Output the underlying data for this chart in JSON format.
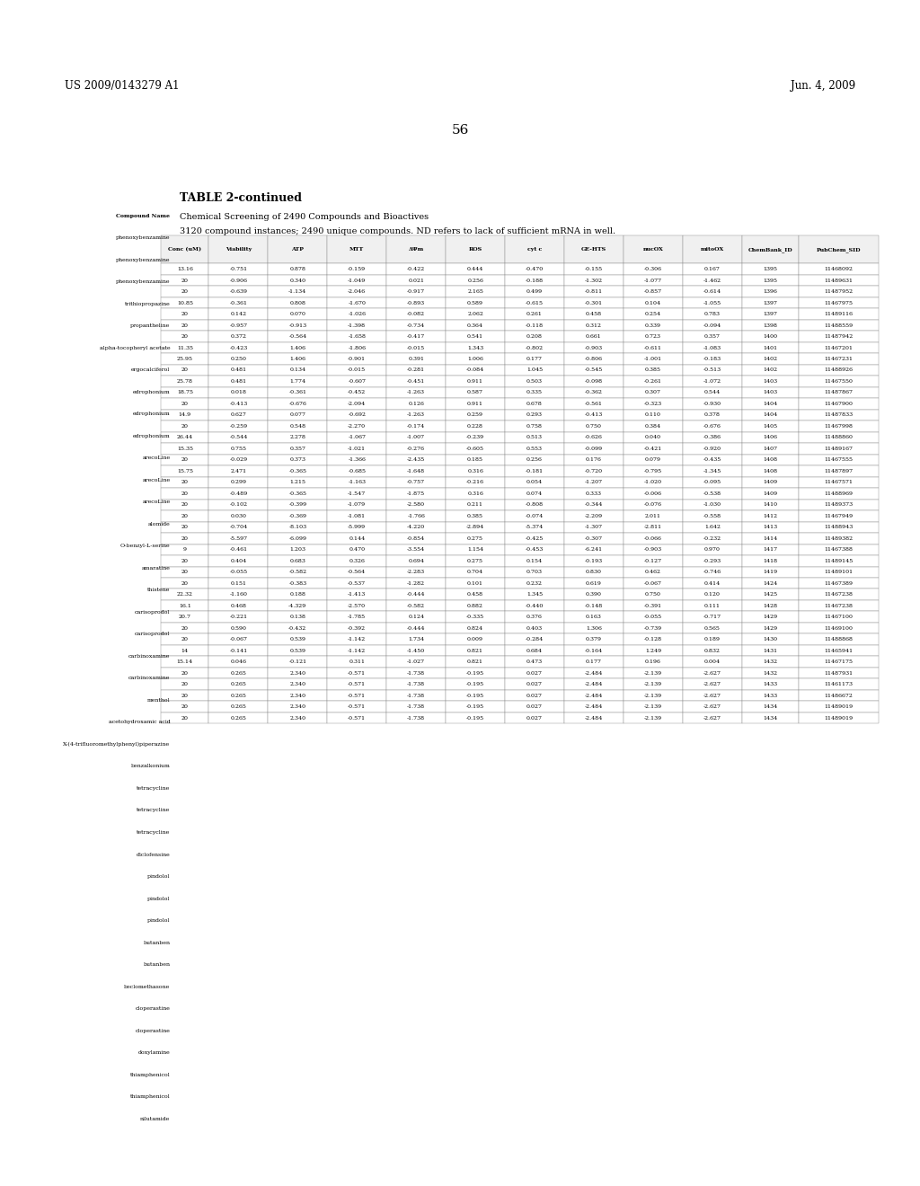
{
  "header_left": "US 2009/0143279 A1",
  "header_right": "Jun. 4, 2009",
  "page_number": "56",
  "table_title": "TABLE 2-continued",
  "subtitle1": "Chemical Screening of 2490 Compounds and Bioactives",
  "subtitle2": "3120 compound instances; 2490 unique compounds. ND refers to lack of sufficient mRNA in well.",
  "col_header": [
    "Compound Name",
    "Conc (uM)",
    "Viability",
    "ATP",
    "MTT",
    "ΔΨm",
    "ROS",
    "cyt c",
    "GE-HTS",
    "nucOX",
    "mitoOX",
    "ChemBank_ID",
    "PubChem_SID"
  ],
  "rows": [
    [
      "phenoxybenzamine",
      "13.16",
      "-0.751",
      "0.878",
      "-0.159",
      "-0.422",
      "0.444",
      "-0.470",
      "-0.155",
      "-0.306",
      "0.167",
      "1395",
      "11468092"
    ],
    [
      "phenoxybenzamine",
      "20",
      "-0.906",
      "0.340",
      "-1.049",
      "0.021",
      "0.256",
      "-0.188",
      "-1.302",
      "-1.077",
      "-1.462",
      "1395",
      "11489631"
    ],
    [
      "phenoxybenzamine",
      "20",
      "-0.639",
      "-1.134",
      "-2.046",
      "-0.917",
      "2.165",
      "0.499",
      "-0.811",
      "-0.857",
      "-0.614",
      "1396",
      "11487952"
    ],
    [
      "trithiopropazine",
      "10.85",
      "-0.361",
      "0.808",
      "-1.670",
      "-0.893",
      "0.589",
      "-0.615",
      "-0.301",
      "0.104",
      "-1.055",
      "1397",
      "11467975"
    ],
    [
      "propantheline",
      "20",
      "0.142",
      "0.070",
      "-1.026",
      "-0.082",
      "2.062",
      "0.261",
      "0.458",
      "0.254",
      "0.783",
      "1397",
      "11489116"
    ],
    [
      "alpha-tocopheryl acetate",
      "20",
      "-0.957",
      "-0.913",
      "-1.398",
      "-0.734",
      "0.364",
      "-0.118",
      "0.312",
      "0.339",
      "-0.094",
      "1398",
      "11488559"
    ],
    [
      "ergocalciferol",
      "20",
      "0.372",
      "-0.564",
      "-1.658",
      "-0.417",
      "0.541",
      "0.208",
      "0.661",
      "0.723",
      "0.357",
      "1400",
      "11487942"
    ],
    [
      "edrophonium",
      "11.35",
      "-0.423",
      "1.406",
      "-1.806",
      "-0.015",
      "1.343",
      "-0.802",
      "-0.903",
      "-0.611",
      "-1.083",
      "1401",
      "11467201"
    ],
    [
      "edrophonium",
      "25.95",
      "0.250",
      "1.406",
      "-0.901",
      "0.391",
      "1.006",
      "0.177",
      "-0.806",
      "-1.001",
      "-0.183",
      "1402",
      "11467231"
    ],
    [
      "edrophonium",
      "20",
      "0.481",
      "0.134",
      "-0.015",
      "-0.281",
      "-0.084",
      "1.045",
      "-0.545",
      "0.385",
      "-0.513",
      "1402",
      "11488926"
    ],
    [
      "arecoLine",
      "25.78",
      "0.481",
      "1.774",
      "-0.607",
      "-0.451",
      "0.911",
      "0.503",
      "-0.098",
      "-0.261",
      "-1.072",
      "1403",
      "11467550"
    ],
    [
      "arecoLine",
      "18.75",
      "0.018",
      "-0.361",
      "-0.452",
      "-1.263",
      "0.587",
      "0.335",
      "-0.362",
      "0.307",
      "0.544",
      "1403",
      "11487867"
    ],
    [
      "arecoLine",
      "20",
      "-0.413",
      "-0.676",
      "-2.094",
      "0.126",
      "0.911",
      "0.678",
      "-0.561",
      "-0.323",
      "-0.930",
      "1404",
      "11467900"
    ],
    [
      "alomide",
      "14.9",
      "0.627",
      "0.077",
      "-0.692",
      "-1.263",
      "0.259",
      "0.293",
      "-0.413",
      "0.110",
      "0.378",
      "1404",
      "11487833"
    ],
    [
      "O-benzyl-L-serine",
      "20",
      "-0.259",
      "0.548",
      "-2.270",
      "-0.174",
      "0.228",
      "0.758",
      "0.750",
      "0.384",
      "-0.676",
      "1405",
      "11467998"
    ],
    [
      "amaratine",
      "26.44",
      "-0.544",
      "2.278",
      "-1.067",
      "-1.007",
      "-0.239",
      "0.513",
      "-0.626",
      "0.040",
      "-0.386",
      "1406",
      "11488860"
    ],
    [
      "thistene",
      "15.35",
      "0.755",
      "0.357",
      "-1.021",
      "-0.276",
      "-0.605",
      "0.553",
      "-0.099",
      "-0.421",
      "-0.920",
      "1407",
      "11489167"
    ],
    [
      "carisoprodol",
      "20",
      "-0.029",
      "0.373",
      "-1.366",
      "-2.435",
      "0.185",
      "0.256",
      "0.176",
      "0.079",
      "-0.435",
      "1408",
      "11467555"
    ],
    [
      "carisoprodol",
      "15.75",
      "2.471",
      "-0.365",
      "-0.685",
      "-1.648",
      "0.316",
      "-0.181",
      "-0.720",
      "-0.795",
      "-1.345",
      "1408",
      "11487897"
    ],
    [
      "carbinoxamine",
      "20",
      "0.299",
      "1.215",
      "-1.163",
      "-0.757",
      "-0.216",
      "0.054",
      "-1.207",
      "-1.020",
      "-0.095",
      "1409",
      "11467571"
    ],
    [
      "carbinoxamine",
      "20",
      "-0.489",
      "-0.365",
      "-1.547",
      "-1.875",
      "0.316",
      "0.074",
      "0.333",
      "-0.006",
      "-0.538",
      "1409",
      "11488969"
    ],
    [
      "menthol",
      "20",
      "-0.102",
      "-0.399",
      "-1.079",
      "-2.580",
      "0.211",
      "-0.808",
      "-0.344",
      "-0.076",
      "-1.030",
      "1410",
      "11489373"
    ],
    [
      "acetohydroxamic acid",
      "20",
      "0.030",
      "-0.369",
      "-1.081",
      "-1.766",
      "0.385",
      "-0.074",
      "-2.209",
      "2.011",
      "-0.558",
      "1412",
      "11467949"
    ],
    [
      "X-(4-trifluoromethylphenyl)piperazine",
      "20",
      "-0.704",
      "-8.103",
      "-5.999",
      "-4.220",
      "-2.894",
      "-5.374",
      "-1.307",
      "-2.811",
      "1.642",
      "1413",
      "11488943"
    ],
    [
      "benzalkonium",
      "20",
      "-5.597",
      "-6.099",
      "0.144",
      "-0.854",
      "0.275",
      "-0.425",
      "-0.307",
      "-0.066",
      "-0.232",
      "1414",
      "11489382"
    ],
    [
      "tetracycline",
      "9",
      "-0.461",
      "1.203",
      "0.470",
      "-3.554",
      "1.154",
      "-0.453",
      "-6.241",
      "-0.903",
      "0.970",
      "1417",
      "11467388"
    ],
    [
      "tetracycline",
      "20",
      "0.404",
      "0.683",
      "0.326",
      "0.694",
      "0.275",
      "0.154",
      "-0.193",
      "-0.127",
      "-0.293",
      "1418",
      "11489145"
    ],
    [
      "tetracycline",
      "20",
      "-0.055",
      "-0.582",
      "-0.564",
      "-2.283",
      "0.704",
      "0.703",
      "0.830",
      "0.462",
      "-0.746",
      "1419",
      "11489101"
    ],
    [
      "diclofensine",
      "20",
      "0.151",
      "-0.383",
      "-0.537",
      "-1.282",
      "0.101",
      "0.232",
      "0.619",
      "-0.067",
      "0.414",
      "1424",
      "11467389"
    ],
    [
      "pindolol",
      "22.32",
      "-1.160",
      "0.188",
      "-1.413",
      "-0.444",
      "0.458",
      "1.345",
      "0.390",
      "0.750",
      "0.120",
      "1425",
      "11467238"
    ],
    [
      "pindolol",
      "16.1",
      "0.468",
      "-4.329",
      "-2.570",
      "-0.582",
      "0.882",
      "-0.440",
      "-0.148",
      "-0.391",
      "0.111",
      "1428",
      "11467238"
    ],
    [
      "pindolol",
      "20.7",
      "-0.221",
      "0.138",
      "-1.785",
      "0.124",
      "-0.335",
      "0.376",
      "0.163",
      "-0.055",
      "-0.717",
      "1429",
      "11467100"
    ],
    [
      "butanben",
      "20",
      "0.590",
      "-0.432",
      "-0.392",
      "-0.444",
      "0.824",
      "0.403",
      "1.306",
      "-0.739",
      "0.565",
      "1429",
      "11469100"
    ],
    [
      "butanben",
      "20",
      "-0.067",
      "0.539",
      "-1.142",
      "1.734",
      "0.009",
      "-0.284",
      "0.379",
      "-0.128",
      "0.189",
      "1430",
      "11488868"
    ],
    [
      "beclomethasone",
      "14",
      "-0.141",
      "0.539",
      "-1.142",
      "-1.450",
      "0.821",
      "0.684",
      "-0.164",
      "1.249",
      "0.832",
      "1431",
      "11465941"
    ],
    [
      "cloperastine",
      "15.14",
      "0.046",
      "-0.121",
      "0.311",
      "-1.027",
      "0.821",
      "0.473",
      "0.177",
      "0.196",
      "0.004",
      "1432",
      "11467175"
    ],
    [
      "cloperastine",
      "20",
      "0.265",
      "2.340",
      "-0.571",
      "-1.738",
      "-0.195",
      "0.027",
      "-2.484",
      "-2.139",
      "-2.627",
      "1432",
      "11487931"
    ],
    [
      "doxylamine",
      "20",
      "0.265",
      "2.340",
      "-0.571",
      "-1.738",
      "-0.195",
      "0.027",
      "-2.484",
      "-2.139",
      "-2.627",
      "1433",
      "11461173"
    ],
    [
      "thiamphenicol",
      "20",
      "0.265",
      "2.340",
      "-0.571",
      "-1.738",
      "-0.195",
      "0.027",
      "-2.484",
      "-2.139",
      "-2.627",
      "1433",
      "11486672"
    ],
    [
      "thiamphenicol",
      "20",
      "0.265",
      "2.340",
      "-0.571",
      "-1.738",
      "-0.195",
      "0.027",
      "-2.484",
      "-2.139",
      "-2.627",
      "1434",
      "11489019"
    ],
    [
      "nilutamide",
      "20",
      "0.265",
      "2.340",
      "-0.571",
      "-1.738",
      "-0.195",
      "0.027",
      "-2.484",
      "-2.139",
      "-2.627",
      "1434",
      "11489019"
    ]
  ],
  "compound_names_left": [
    "Compound Name",
    "phenoxybenzamine",
    "phenoxybenzamine",
    "phenoxybenzamine",
    "trithiopropazine",
    "propantheline",
    "alpha-tocopheryl acetate",
    "ergocalciferol",
    "edrophonium",
    "edrophonium",
    "edrophonium",
    "arecoLine",
    "arecoLine",
    "arecoLine",
    "alomide",
    "O-benzyl-L-serine",
    "amaratine",
    "thistene",
    "carisoprodol",
    "carisoprodol",
    "carbinoxamine",
    "carbinoxamine",
    "menthol",
    "acetohydroxamic acid",
    "X-(4-trifluoromethylphenyl)piperazine",
    "benzalkonium",
    "tetracycline",
    "tetracycline",
    "tetracycline",
    "diclofensine",
    "pindolol",
    "pindolol",
    "pindolol",
    "butanben",
    "butanben",
    "beclomethasone",
    "cloperastine",
    "cloperastine",
    "doxylamine",
    "thiamphenicol",
    "thiamphenicol",
    "nilutamide"
  ]
}
